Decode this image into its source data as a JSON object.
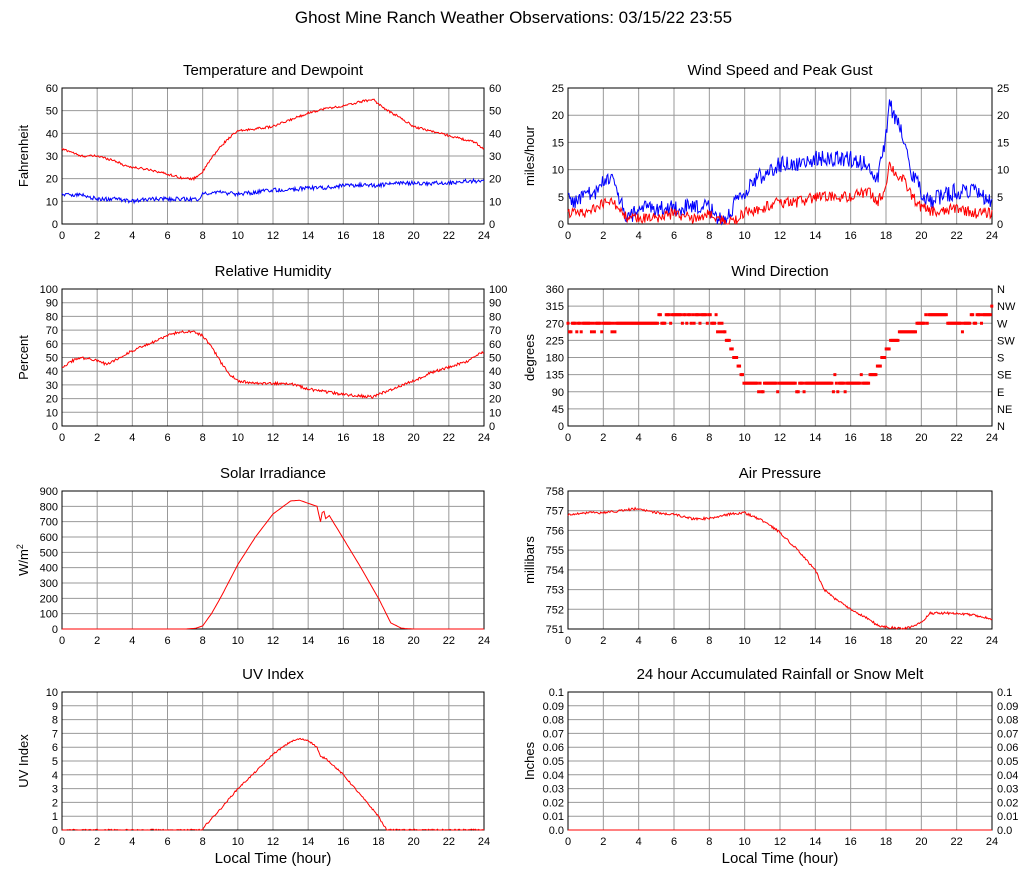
{
  "page": {
    "title": "Ghost Mine Ranch Weather Observations: 03/15/22 23:55"
  },
  "colors": {
    "primary": "#ff0000",
    "secondary": "#0000ff",
    "grid": "#999999"
  },
  "chart_data": [
    {
      "id": "temp",
      "type": "line",
      "title": "Temperature and Dewpoint",
      "ylabel": "Fahrenheit",
      "xlabel": "",
      "xlim": [
        0,
        24
      ],
      "ylim": [
        0,
        60
      ],
      "xticks": [
        0,
        2,
        4,
        6,
        8,
        10,
        12,
        14,
        16,
        18,
        20,
        22,
        24
      ],
      "yticks": [
        0,
        10,
        20,
        30,
        40,
        50,
        60
      ],
      "right_yticks": [
        "0",
        "10",
        "20",
        "30",
        "40",
        "50",
        "60"
      ],
      "grid": true,
      "series": [
        {
          "color": "#ff0000",
          "noise": 0.5,
          "x": [
            0,
            0.5,
            1,
            2,
            3,
            3.5,
            4,
            5,
            6,
            6.5,
            7,
            7.5,
            8,
            8.5,
            9,
            9.5,
            10,
            11,
            12,
            13,
            14,
            15,
            16,
            17,
            17.7,
            18,
            18.5,
            19,
            20,
            21,
            22,
            23,
            23.5,
            24
          ],
          "y": [
            33,
            32,
            30,
            30,
            28,
            26,
            25,
            24,
            22,
            21,
            20,
            20,
            23,
            29,
            34,
            38,
            41,
            42,
            43,
            46,
            49,
            51,
            52,
            54,
            55,
            53,
            50,
            48,
            43,
            41,
            39,
            37,
            36,
            33
          ]
        },
        {
          "color": "#0000ff",
          "noise": 0.9,
          "x": [
            0,
            1,
            2,
            3,
            4,
            5,
            6,
            7,
            7.7,
            8,
            8.5,
            9,
            10,
            11,
            12,
            13,
            14,
            15,
            16,
            17,
            18,
            19,
            20,
            21,
            22,
            23,
            24
          ],
          "y": [
            13,
            13,
            11,
            11,
            10,
            11,
            11,
            11,
            11,
            13,
            14,
            14,
            13,
            14,
            15,
            15,
            16,
            16,
            17,
            17,
            17,
            18,
            18,
            18,
            18,
            19,
            19
          ]
        }
      ]
    },
    {
      "id": "wind",
      "type": "line",
      "title": "Wind Speed and Peak Gust",
      "ylabel": "miles/hour",
      "xlabel": "",
      "xlim": [
        0,
        24
      ],
      "ylim": [
        0,
        25
      ],
      "xticks": [
        0,
        2,
        4,
        6,
        8,
        10,
        12,
        14,
        16,
        18,
        20,
        22,
        24
      ],
      "yticks": [
        0,
        5,
        10,
        15,
        20,
        25
      ],
      "right_yticks": [
        "0",
        "5",
        "10",
        "15",
        "20",
        "25"
      ],
      "grid": true,
      "series": [
        {
          "color": "#0000ff",
          "noise": 1.5,
          "x": [
            0,
            0.5,
            1,
            1.5,
            2,
            2.4,
            3,
            3.3,
            3.8,
            4,
            5,
            6,
            7,
            8,
            8.5,
            9,
            9.5,
            10,
            10.5,
            11,
            12,
            13,
            14,
            15,
            16,
            17,
            17.5,
            17.9,
            18.2,
            18.6,
            19,
            19.5,
            20,
            20.5,
            21,
            22,
            23,
            24
          ],
          "y": [
            5,
            4,
            6,
            5,
            8,
            9,
            4,
            1,
            2,
            3,
            3,
            3,
            3,
            3,
            1,
            1,
            4,
            5,
            8,
            9,
            11,
            11,
            12,
            12,
            12,
            11,
            8,
            14,
            22,
            19,
            16,
            9,
            6,
            4,
            5,
            6,
            6,
            4
          ]
        },
        {
          "color": "#ff0000",
          "noise": 1.0,
          "x": [
            0,
            1,
            2,
            2.5,
            3,
            3.3,
            4,
            5,
            6,
            7,
            8,
            8.5,
            9,
            9.5,
            10,
            11,
            12,
            13,
            14,
            15,
            16,
            17,
            17.5,
            17.9,
            18.2,
            18.6,
            19,
            19.5,
            20,
            21,
            22,
            23,
            24
          ],
          "y": [
            2,
            2,
            4,
            4,
            3,
            1,
            1,
            1,
            2,
            1,
            2,
            1,
            0,
            1,
            2,
            3,
            4,
            4,
            5,
            5,
            5,
            6,
            4,
            6,
            11,
            9,
            8,
            5,
            3,
            2,
            3,
            2,
            2
          ]
        }
      ]
    },
    {
      "id": "rh",
      "type": "line",
      "title": "Relative Humidity",
      "ylabel": "Percent",
      "xlabel": "",
      "xlim": [
        0,
        24
      ],
      "ylim": [
        0,
        100
      ],
      "xticks": [
        0,
        2,
        4,
        6,
        8,
        10,
        12,
        14,
        16,
        18,
        20,
        22,
        24
      ],
      "yticks": [
        0,
        10,
        20,
        30,
        40,
        50,
        60,
        70,
        80,
        90,
        100
      ],
      "right_yticks": [
        "0",
        "10",
        "20",
        "30",
        "40",
        "50",
        "60",
        "70",
        "80",
        "90",
        "100"
      ],
      "grid": true,
      "series": [
        {
          "color": "#ff0000",
          "noise": 1.0,
          "x": [
            0,
            0.5,
            1,
            2,
            2.5,
            3,
            4,
            5,
            6,
            6.5,
            7,
            7.5,
            8,
            8.5,
            9,
            9.5,
            10,
            11,
            12,
            13,
            14,
            15,
            16,
            17,
            17.7,
            18,
            19,
            20,
            21,
            22,
            23,
            23.5,
            24
          ],
          "y": [
            43,
            47,
            50,
            48,
            45,
            48,
            55,
            60,
            66,
            68,
            69,
            69,
            66,
            58,
            47,
            38,
            33,
            31,
            31,
            31,
            27,
            25,
            23,
            22,
            21,
            23,
            28,
            33,
            39,
            43,
            47,
            51,
            54
          ]
        }
      ]
    },
    {
      "id": "wdir",
      "type": "scatter",
      "title": "Wind Direction",
      "ylabel": "degrees",
      "xlabel": "",
      "xlim": [
        0,
        24
      ],
      "ylim": [
        0,
        360
      ],
      "xticks": [
        0,
        2,
        4,
        6,
        8,
        10,
        12,
        14,
        16,
        18,
        20,
        22,
        24
      ],
      "yticks": [
        0,
        45,
        90,
        135,
        180,
        225,
        270,
        315,
        360
      ],
      "right_yticks": [
        "N",
        "NE",
        "E",
        "SE",
        "S",
        "SW",
        "W",
        "NW",
        "N"
      ],
      "grid": true,
      "series": [
        {
          "color": "#ff0000",
          "noise": 18,
          "x": [
            0,
            1,
            2,
            3,
            4,
            5,
            6,
            7,
            8,
            8.5,
            9,
            9.5,
            10,
            10.5,
            11,
            12,
            13,
            14,
            15,
            16,
            17,
            17.5,
            18,
            18.5,
            19,
            20,
            20.8,
            21.5,
            22,
            23,
            24
          ],
          "y": [
            260,
            260,
            265,
            265,
            270,
            275,
            285,
            290,
            290,
            265,
            230,
            180,
            115,
            110,
            100,
            110,
            105,
            120,
            110,
            110,
            120,
            150,
            200,
            230,
            245,
            265,
            300,
            280,
            270,
            280,
            290
          ]
        }
      ]
    },
    {
      "id": "solar",
      "type": "line",
      "title": "Solar Irradiance",
      "ylabel": "W/m2",
      "xlabel": "",
      "xlim": [
        0,
        24
      ],
      "ylim": [
        0,
        900
      ],
      "xticks": [
        0,
        2,
        4,
        6,
        8,
        10,
        12,
        14,
        16,
        18,
        20,
        22,
        24
      ],
      "yticks": [
        0,
        100,
        200,
        300,
        400,
        500,
        600,
        700,
        800,
        900
      ],
      "grid": true,
      "series": [
        {
          "color": "#ff0000",
          "noise": 0,
          "x": [
            0,
            7,
            7.6,
            8,
            8.5,
            9,
            10,
            11,
            12,
            13,
            13.5,
            14,
            14.5,
            14.7,
            14.85,
            15,
            15.2,
            16,
            17,
            18,
            18.7,
            19.3,
            20,
            24
          ],
          "y": [
            0,
            0,
            5,
            20,
            100,
            200,
            420,
            600,
            750,
            835,
            840,
            820,
            800,
            700,
            790,
            720,
            740,
            590,
            400,
            200,
            40,
            5,
            0,
            0
          ]
        }
      ]
    },
    {
      "id": "pressure",
      "type": "line",
      "title": "Air Pressure",
      "ylabel": "millibars",
      "xlabel": "",
      "xlim": [
        0,
        24
      ],
      "ylim": [
        751,
        758
      ],
      "xticks": [
        0,
        2,
        4,
        6,
        8,
        10,
        12,
        14,
        16,
        18,
        20,
        22,
        24
      ],
      "yticks": [
        751,
        752,
        753,
        754,
        755,
        756,
        757,
        758
      ],
      "grid": true,
      "series": [
        {
          "color": "#ff0000",
          "noise": 0.06,
          "x": [
            0,
            1,
            2,
            3,
            3.8,
            5,
            6,
            7,
            8,
            9,
            10,
            10.5,
            11,
            12,
            13,
            14,
            14.5,
            15,
            16,
            17,
            17.5,
            18,
            19,
            20,
            20.5,
            21,
            22,
            23,
            24
          ],
          "y": [
            756.8,
            756.9,
            756.9,
            757.0,
            757.1,
            756.9,
            756.8,
            756.6,
            756.6,
            756.8,
            756.9,
            756.7,
            756.5,
            755.9,
            755.0,
            754.0,
            753.0,
            752.6,
            752.0,
            751.5,
            751.2,
            751.1,
            751.0,
            751.3,
            751.8,
            751.8,
            751.8,
            751.7,
            751.5
          ]
        }
      ]
    },
    {
      "id": "uv",
      "type": "line",
      "title": "UV Index",
      "ylabel": "UV Index",
      "xlabel": "Local Time (hour)",
      "xlim": [
        0,
        24
      ],
      "ylim": [
        0,
        10
      ],
      "xticks": [
        0,
        2,
        4,
        6,
        8,
        10,
        12,
        14,
        16,
        18,
        20,
        22,
        24
      ],
      "yticks": [
        0,
        1,
        2,
        3,
        4,
        5,
        6,
        7,
        8,
        9,
        10
      ],
      "grid": true,
      "series": [
        {
          "color": "#ff0000",
          "noise": 0.06,
          "x": [
            0,
            8,
            8.2,
            9,
            10,
            11,
            12,
            13,
            13.5,
            14,
            14.5,
            14.7,
            15,
            16,
            17,
            18,
            18.3,
            18.5,
            24
          ],
          "y": [
            0,
            0,
            0.4,
            1.5,
            3,
            4.2,
            5.5,
            6.4,
            6.6,
            6.5,
            6.0,
            5.3,
            5.2,
            4.0,
            2.5,
            1.0,
            0.3,
            0,
            0
          ]
        }
      ]
    },
    {
      "id": "rain",
      "type": "line",
      "title": "24 hour Accumulated Rainfall or Snow Melt",
      "ylabel": "Inches",
      "xlabel": "Local Time (hour)",
      "xlim": [
        0,
        24
      ],
      "ylim": [
        0,
        0.1
      ],
      "xticks": [
        0,
        2,
        4,
        6,
        8,
        10,
        12,
        14,
        16,
        18,
        20,
        22,
        24
      ],
      "yticks": [
        0,
        0.01,
        0.02,
        0.03,
        0.04,
        0.05,
        0.06,
        0.07,
        0.08,
        0.09,
        0.1
      ],
      "ytick_labels": [
        "0.0",
        "0.01",
        "0.02",
        "0.03",
        "0.04",
        "0.05",
        "0.06",
        "0.07",
        "0.08",
        "0.09",
        "0.1"
      ],
      "right_yticks": [
        "0.0",
        "0.01",
        "0.02",
        "0.03",
        "0.04",
        "0.05",
        "0.06",
        "0.07",
        "0.08",
        "0.09",
        "0.1"
      ],
      "grid": true,
      "series": [
        {
          "color": "#ff0000",
          "noise": 0,
          "x": [
            0,
            24
          ],
          "y": [
            0,
            0
          ]
        }
      ]
    }
  ]
}
